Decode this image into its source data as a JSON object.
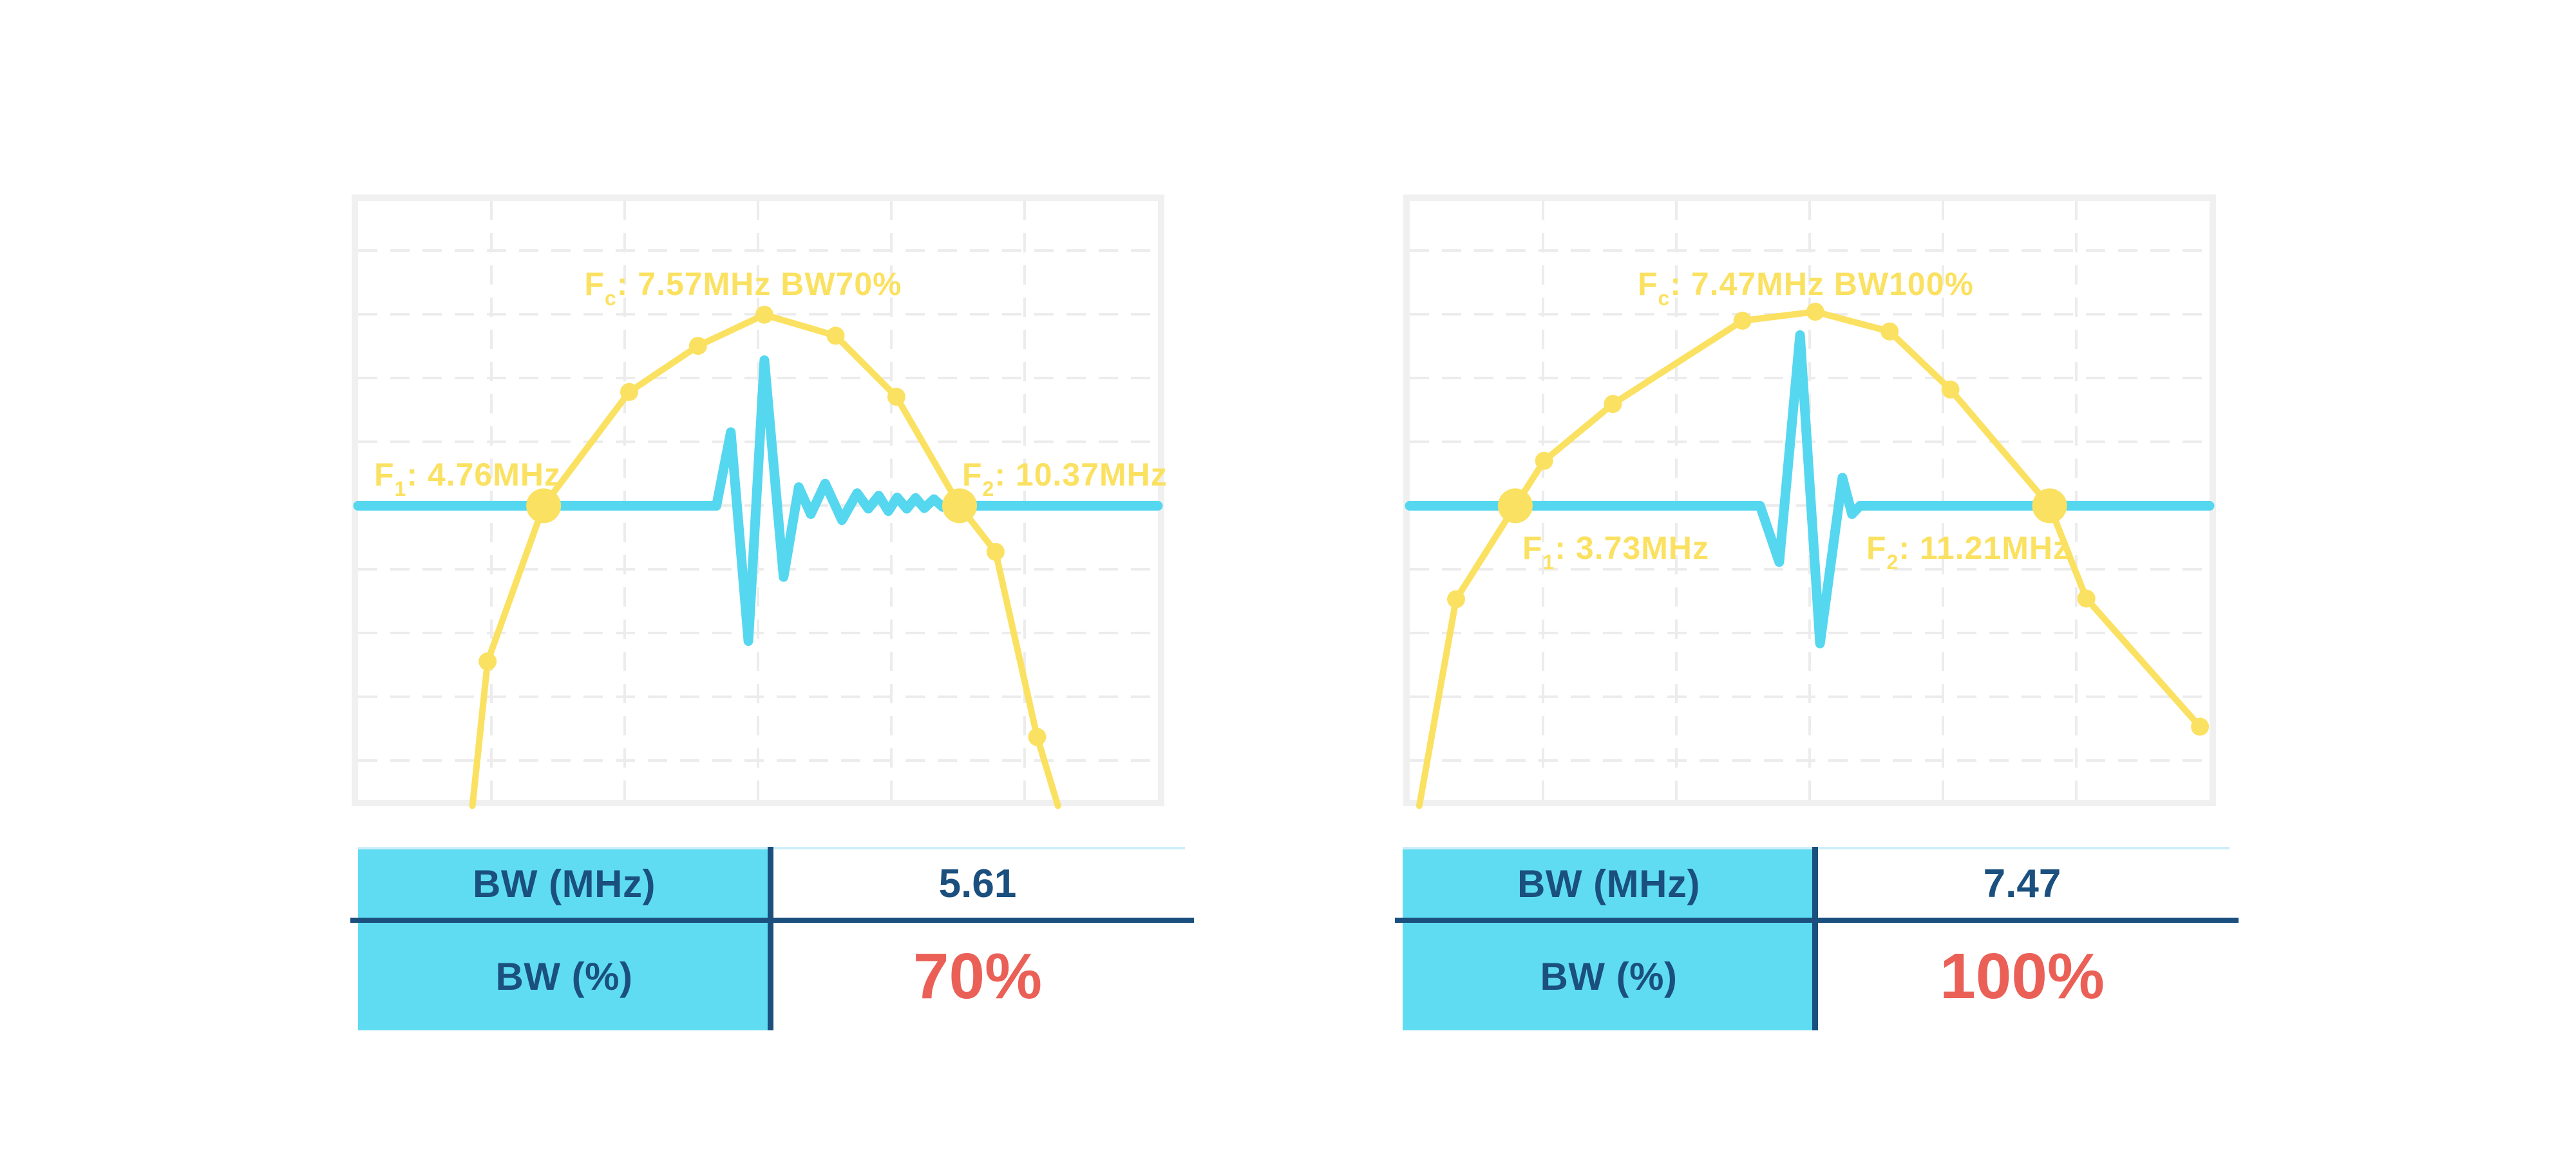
{
  "page": {
    "background": "#ffffff"
  },
  "colors": {
    "spectrum_yellow": "#FBE161",
    "pulse_cyan": "#55D7EF",
    "table_cell_cyan": "#5FDCF2",
    "navy": "#1A4F7E",
    "highlight_red": "#EA6057",
    "frame_gray": "#F0F0F0",
    "grid_gray": "#ECECEC",
    "table_top_line": "#CDEEF7"
  },
  "charts": [
    {
      "title": {
        "prefix": "F",
        "sub": "c",
        "rest": ": 7.57MHz BW70%"
      },
      "f1_label": {
        "prefix": "F",
        "sub": "1",
        "rest": ": 4.76MHz"
      },
      "f2_label": {
        "prefix": "F",
        "sub": "2",
        "rest": ": 10.37MHz"
      },
      "table": {
        "rows": [
          {
            "label": "BW (MHz)",
            "value": "5.61"
          },
          {
            "label": "BW (%)",
            "value": "70%"
          }
        ]
      }
    },
    {
      "title": {
        "prefix": "F",
        "sub": "c",
        "rest": ": 7.47MHz BW100%"
      },
      "f1_label": {
        "prefix": "F",
        "sub": "1",
        "rest": ": 3.73MHz"
      },
      "f2_label": {
        "prefix": "F",
        "sub": "2",
        "rest": ": 11.21MHz"
      },
      "table": {
        "rows": [
          {
            "label": "BW (MHz)",
            "value": "7.47"
          },
          {
            "label": "BW (%)",
            "value": "100%"
          }
        ]
      }
    }
  ],
  "chart_data": [
    {
      "type": "line",
      "title": "Fc: 7.57MHz BW70%",
      "fc_mhz": 7.57,
      "f1_mhz": 4.76,
      "f2_mhz": 10.37,
      "bw_mhz": 5.61,
      "bw_pct": 70,
      "xlabel": "",
      "ylabel": "",
      "axis_ticks_shown": false,
      "baseline_y_norm": 0.509,
      "grid": {
        "vertical_lines": 5,
        "horizontal_lines": 9,
        "style": "dashed"
      },
      "series": [
        {
          "name": "spectrum",
          "color": "#FBE161",
          "points_norm": [
            [
              0.143,
              1.01
            ],
            [
              0.162,
              0.769
            ],
            [
              0.232,
              0.509
            ],
            [
              0.339,
              0.319
            ],
            [
              0.425,
              0.242
            ],
            [
              0.508,
              0.19
            ],
            [
              0.597,
              0.225
            ],
            [
              0.673,
              0.327
            ],
            [
              0.752,
              0.509
            ],
            [
              0.797,
              0.586
            ],
            [
              0.849,
              0.895
            ],
            [
              0.875,
              1.01
            ]
          ],
          "markers_norm": [
            [
              0.162,
              0.769
            ],
            [
              0.339,
              0.319
            ],
            [
              0.425,
              0.242
            ],
            [
              0.508,
              0.19
            ],
            [
              0.597,
              0.225
            ],
            [
              0.673,
              0.327
            ],
            [
              0.797,
              0.586
            ],
            [
              0.849,
              0.895
            ]
          ],
          "bw_markers_norm": [
            [
              0.232,
              0.509
            ],
            [
              0.752,
              0.509
            ]
          ]
        },
        {
          "name": "echo-pulse",
          "color": "#55D7EF",
          "points_norm": [
            [
              0.0,
              0.509
            ],
            [
              0.448,
              0.509
            ],
            [
              0.466,
              0.386
            ],
            [
              0.488,
              0.735
            ],
            [
              0.508,
              0.266
            ],
            [
              0.532,
              0.628
            ],
            [
              0.551,
              0.478
            ],
            [
              0.566,
              0.523
            ],
            [
              0.584,
              0.472
            ],
            [
              0.605,
              0.533
            ],
            [
              0.624,
              0.488
            ],
            [
              0.638,
              0.514
            ],
            [
              0.651,
              0.492
            ],
            [
              0.663,
              0.518
            ],
            [
              0.674,
              0.495
            ],
            [
              0.686,
              0.514
            ],
            [
              0.697,
              0.496
            ],
            [
              0.708,
              0.513
            ],
            [
              0.72,
              0.498
            ],
            [
              0.731,
              0.511
            ],
            [
              0.752,
              0.509
            ],
            [
              1.0,
              0.509
            ]
          ]
        }
      ]
    },
    {
      "type": "line",
      "title": "Fc: 7.47MHz BW100%",
      "fc_mhz": 7.47,
      "f1_mhz": 3.73,
      "f2_mhz": 11.21,
      "bw_mhz": 7.47,
      "bw_pct": 100,
      "xlabel": "",
      "ylabel": "",
      "axis_ticks_shown": false,
      "baseline_y_norm": 0.509,
      "grid": {
        "vertical_lines": 5,
        "horizontal_lines": 9,
        "style": "dashed"
      },
      "series": [
        {
          "name": "spectrum",
          "color": "#FBE161",
          "points_norm": [
            [
              0.012,
              1.01
            ],
            [
              0.058,
              0.665
            ],
            [
              0.132,
              0.509
            ],
            [
              0.168,
              0.434
            ],
            [
              0.254,
              0.339
            ],
            [
              0.416,
              0.2
            ],
            [
              0.507,
              0.185
            ],
            [
              0.6,
              0.218
            ],
            [
              0.676,
              0.315
            ],
            [
              0.8,
              0.509
            ],
            [
              0.846,
              0.664
            ],
            [
              0.988,
              0.878
            ]
          ],
          "markers_norm": [
            [
              0.058,
              0.665
            ],
            [
              0.168,
              0.434
            ],
            [
              0.254,
              0.339
            ],
            [
              0.416,
              0.2
            ],
            [
              0.507,
              0.185
            ],
            [
              0.6,
              0.218
            ],
            [
              0.676,
              0.315
            ],
            [
              0.846,
              0.664
            ],
            [
              0.988,
              0.878
            ]
          ],
          "bw_markers_norm": [
            [
              0.132,
              0.509
            ],
            [
              0.8,
              0.509
            ]
          ]
        },
        {
          "name": "echo-pulse",
          "color": "#55D7EF",
          "points_norm": [
            [
              0.0,
              0.509
            ],
            [
              0.438,
              0.509
            ],
            [
              0.462,
              0.603
            ],
            [
              0.488,
              0.224
            ],
            [
              0.513,
              0.739
            ],
            [
              0.541,
              0.462
            ],
            [
              0.553,
              0.523
            ],
            [
              0.563,
              0.509
            ],
            [
              1.0,
              0.509
            ]
          ]
        }
      ]
    }
  ]
}
